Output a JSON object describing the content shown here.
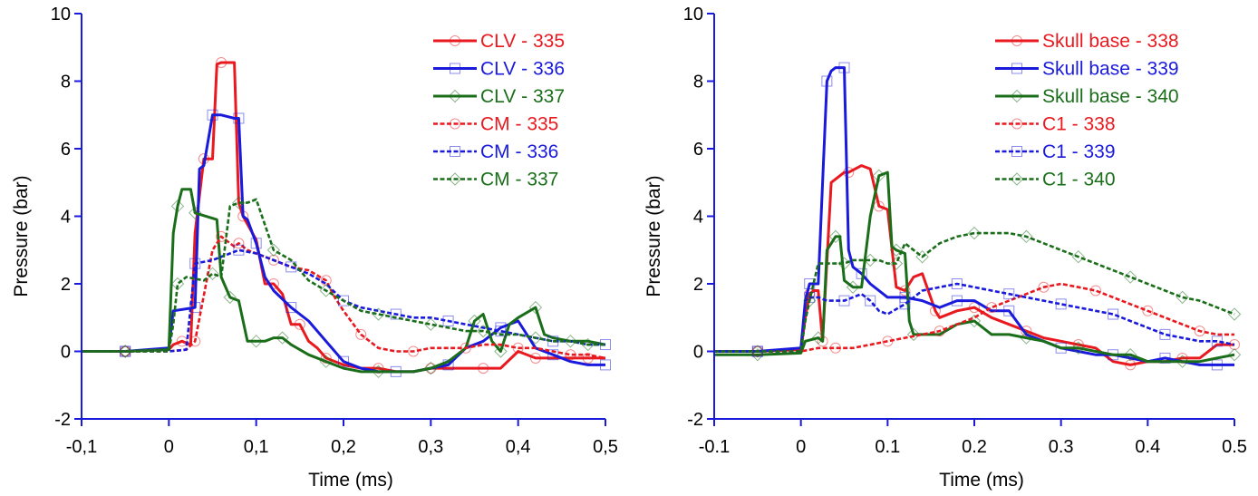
{
  "chart_data": [
    {
      "type": "line",
      "title": "",
      "xlabel": "Time (ms)",
      "ylabel": "Pressure (bar)",
      "xlim": [
        -0.1,
        0.5
      ],
      "ylim": [
        -2,
        10
      ],
      "xticks": [
        -0.1,
        0,
        0.1,
        0.2,
        0.3,
        0.4,
        0.5
      ],
      "xtick_labels": [
        "-0,1",
        "0",
        "0,1",
        "0,2",
        "0,3",
        "0,4",
        "0,5"
      ],
      "yticks": [
        -2,
        0,
        2,
        4,
        6,
        8,
        10
      ],
      "ytick_labels": [
        "-2",
        "0",
        "2",
        "4",
        "6",
        "8",
        "10"
      ],
      "grid": false,
      "legend_position": "top-right",
      "series": [
        {
          "name": "CLV - 335",
          "color": "#e8191f",
          "dash": "solid",
          "marker": "circle",
          "x": [
            -0.1,
            -0.05,
            0,
            0.005,
            0.015,
            0.025,
            0.03,
            0.04,
            0.05,
            0.055,
            0.06,
            0.075,
            0.08,
            0.085,
            0.1,
            0.11,
            0.12,
            0.13,
            0.14,
            0.15,
            0.16,
            0.17,
            0.18,
            0.2,
            0.22,
            0.24,
            0.26,
            0.28,
            0.3,
            0.32,
            0.34,
            0.36,
            0.38,
            0.4,
            0.42,
            0.44,
            0.46,
            0.48,
            0.5
          ],
          "y": [
            0,
            0,
            0.05,
            0.2,
            0.3,
            0.2,
            3.5,
            5.7,
            5.7,
            8.5,
            8.55,
            8.55,
            4.4,
            4,
            3.3,
            2,
            2,
            1.7,
            0.8,
            0.8,
            0.3,
            0.1,
            -0.2,
            -0.4,
            -0.5,
            -0.5,
            -0.6,
            -0.6,
            -0.5,
            -0.5,
            -0.5,
            -0.5,
            -0.5,
            0,
            -0.2,
            -0.2,
            -0.2,
            -0.2,
            -0.2
          ]
        },
        {
          "name": "CLV - 336",
          "color": "#1a1adc",
          "dash": "solid",
          "marker": "square",
          "x": [
            -0.1,
            -0.05,
            0,
            0.005,
            0.03,
            0.035,
            0.04,
            0.05,
            0.06,
            0.075,
            0.08,
            0.085,
            0.09,
            0.1,
            0.11,
            0.12,
            0.14,
            0.16,
            0.18,
            0.2,
            0.22,
            0.24,
            0.26,
            0.28,
            0.3,
            0.32,
            0.34,
            0.36,
            0.38,
            0.4,
            0.42,
            0.44,
            0.46,
            0.48,
            0.5
          ],
          "y": [
            0,
            0,
            0.1,
            1.2,
            1.3,
            5.4,
            5.5,
            7,
            7,
            6.9,
            6.9,
            4,
            3.9,
            3.2,
            2.2,
            1.8,
            1.3,
            0.9,
            0.3,
            -0.3,
            -0.5,
            -0.6,
            -0.6,
            -0.6,
            -0.5,
            -0.4,
            0.1,
            0.3,
            0.7,
            0.9,
            0.1,
            -0.1,
            -0.3,
            -0.4,
            -0.4
          ]
        },
        {
          "name": "CLV - 337",
          "color": "#1a6e1a",
          "dash": "solid",
          "marker": "diamond",
          "x": [
            -0.1,
            -0.05,
            0,
            0.005,
            0.01,
            0.015,
            0.025,
            0.03,
            0.055,
            0.06,
            0.07,
            0.08,
            0.09,
            0.1,
            0.11,
            0.12,
            0.13,
            0.14,
            0.16,
            0.18,
            0.2,
            0.22,
            0.24,
            0.26,
            0.28,
            0.3,
            0.32,
            0.34,
            0.35,
            0.36,
            0.37,
            0.38,
            0.39,
            0.4,
            0.42,
            0.43,
            0.44,
            0.46,
            0.48,
            0.5
          ],
          "y": [
            0,
            0,
            0.05,
            3.5,
            4.3,
            4.8,
            4.8,
            4.1,
            3.9,
            2.2,
            1.6,
            1.5,
            0.3,
            0.3,
            0.3,
            0.4,
            0.4,
            0.2,
            -0.1,
            -0.3,
            -0.5,
            -0.6,
            -0.6,
            -0.6,
            -0.6,
            -0.5,
            -0.3,
            0.1,
            0.9,
            1.1,
            0.3,
            0,
            0.8,
            1,
            1.3,
            0.5,
            0.4,
            0.3,
            0.3,
            0.2
          ]
        },
        {
          "name": "CM - 335",
          "color": "#e8191f",
          "dash": "dashed",
          "marker": "circle",
          "x": [
            -0.1,
            -0.05,
            0,
            0.02,
            0.03,
            0.05,
            0.055,
            0.06,
            0.065,
            0.075,
            0.08,
            0.09,
            0.1,
            0.12,
            0.14,
            0.16,
            0.18,
            0.19,
            0.2,
            0.22,
            0.24,
            0.26,
            0.28,
            0.3,
            0.32,
            0.34,
            0.36,
            0.38,
            0.4,
            0.42,
            0.44,
            0.46,
            0.48,
            0.5
          ],
          "y": [
            0,
            0,
            0,
            0.05,
            0.3,
            3,
            3.2,
            3.4,
            3.3,
            3.1,
            3.2,
            3,
            2.9,
            2.7,
            2.5,
            2.4,
            2.1,
            1.6,
            1.2,
            0.5,
            0.1,
            0,
            0,
            0.1,
            0.1,
            0.1,
            0.2,
            0.2,
            0.1,
            0.1,
            0,
            -0.1,
            -0.1,
            -0.2
          ]
        },
        {
          "name": "CM - 336",
          "color": "#1a1adc",
          "dash": "dashed",
          "marker": "square",
          "x": [
            -0.1,
            -0.05,
            0,
            0.02,
            0.03,
            0.05,
            0.07,
            0.08,
            0.1,
            0.12,
            0.14,
            0.16,
            0.18,
            0.2,
            0.22,
            0.24,
            0.26,
            0.28,
            0.3,
            0.32,
            0.34,
            0.36,
            0.38,
            0.4,
            0.42,
            0.44,
            0.46,
            0.48,
            0.5
          ],
          "y": [
            0,
            0,
            0,
            0.05,
            2.6,
            2.7,
            2.9,
            3,
            2.9,
            2.7,
            2.5,
            2.3,
            2,
            1.5,
            1.3,
            1.2,
            1.1,
            1,
            1,
            0.9,
            0.8,
            0.7,
            0.6,
            0.5,
            0.4,
            0.3,
            0.3,
            0.2,
            0.2
          ]
        },
        {
          "name": "CM - 337",
          "color": "#1a6e1a",
          "dash": "dashed",
          "marker": "diamond",
          "x": [
            -0.1,
            -0.05,
            0,
            0.005,
            0.01,
            0.02,
            0.04,
            0.05,
            0.06,
            0.07,
            0.08,
            0.09,
            0.1,
            0.12,
            0.14,
            0.16,
            0.18,
            0.2,
            0.22,
            0.24,
            0.26,
            0.28,
            0.3,
            0.32,
            0.34,
            0.36,
            0.38,
            0.4,
            0.42,
            0.44,
            0.46,
            0.48,
            0.5
          ],
          "y": [
            0,
            0,
            0,
            0.8,
            2,
            2.2,
            2.1,
            2.3,
            2.2,
            4.3,
            4.4,
            4.4,
            4.5,
            3,
            2.7,
            2.1,
            1.8,
            1.5,
            1.2,
            1.1,
            1,
            0.9,
            0.8,
            0.7,
            0.6,
            0.6,
            0.5,
            0.5,
            0.4,
            0.3,
            0.3,
            0.2,
            0.2
          ]
        }
      ]
    },
    {
      "type": "line",
      "title": "",
      "xlabel": "Time (ms)",
      "ylabel": "Pressure (bar)",
      "xlim": [
        -0.1,
        0.5
      ],
      "ylim": [
        -2,
        10
      ],
      "xticks": [
        -0.1,
        0,
        0.1,
        0.2,
        0.3,
        0.4,
        0.5
      ],
      "xtick_labels": [
        "-0.1",
        "0",
        "0.1",
        "0.2",
        "0.3",
        "0.4",
        "0.5"
      ],
      "yticks": [
        -2,
        0,
        2,
        4,
        6,
        8,
        10
      ],
      "ytick_labels": [
        "-2",
        "0",
        "2",
        "4",
        "6",
        "8",
        "10"
      ],
      "grid": false,
      "legend_position": "top-right",
      "series": [
        {
          "name": "Skull base - 338",
          "color": "#e8191f",
          "dash": "solid",
          "marker": "circle",
          "x": [
            -0.1,
            -0.05,
            0,
            0.005,
            0.01,
            0.015,
            0.02,
            0.025,
            0.035,
            0.05,
            0.055,
            0.07,
            0.08,
            0.09,
            0.1,
            0.11,
            0.12,
            0.13,
            0.14,
            0.155,
            0.16,
            0.18,
            0.2,
            0.22,
            0.24,
            0.26,
            0.28,
            0.3,
            0.32,
            0.34,
            0.36,
            0.38,
            0.4,
            0.42,
            0.44,
            0.46,
            0.48,
            0.5
          ],
          "y": [
            0,
            0,
            0.05,
            1,
            1.7,
            1.8,
            1.8,
            0.3,
            5,
            5.3,
            5.3,
            5.5,
            5.4,
            4.3,
            4.2,
            1.9,
            1.8,
            2.2,
            2.3,
            1.2,
            1,
            1.2,
            1.3,
            1,
            0.8,
            0.6,
            0.4,
            0.3,
            0.2,
            0.1,
            -0.3,
            -0.4,
            -0.3,
            -0.3,
            -0.2,
            -0.2,
            0.2,
            0.2
          ]
        },
        {
          "name": "Skull base - 339",
          "color": "#1a1adc",
          "dash": "solid",
          "marker": "square",
          "x": [
            -0.1,
            -0.05,
            0,
            0.005,
            0.01,
            0.02,
            0.025,
            0.03,
            0.035,
            0.04,
            0.05,
            0.055,
            0.06,
            0.07,
            0.08,
            0.1,
            0.12,
            0.14,
            0.16,
            0.18,
            0.2,
            0.22,
            0.24,
            0.26,
            0.28,
            0.3,
            0.32,
            0.34,
            0.36,
            0.38,
            0.4,
            0.42,
            0.44,
            0.46,
            0.48,
            0.5
          ],
          "y": [
            0,
            0,
            0.1,
            1.5,
            2,
            2,
            5,
            8,
            8.3,
            8.4,
            8.4,
            3,
            2.5,
            2.3,
            2,
            1.6,
            1.6,
            1.5,
            1.3,
            1.5,
            1.5,
            1.2,
            1.2,
            0.5,
            0.3,
            0.1,
            0,
            -0.1,
            -0.1,
            -0.2,
            -0.3,
            -0.2,
            -0.3,
            -0.4,
            -0.4,
            -0.4
          ]
        },
        {
          "name": "Skull base - 340",
          "color": "#1a6e1a",
          "dash": "solid",
          "marker": "diamond",
          "x": [
            -0.1,
            -0.05,
            0,
            0.005,
            0.02,
            0.025,
            0.03,
            0.04,
            0.045,
            0.05,
            0.06,
            0.07,
            0.08,
            0.09,
            0.1,
            0.105,
            0.11,
            0.12,
            0.125,
            0.13,
            0.16,
            0.18,
            0.2,
            0.22,
            0.24,
            0.26,
            0.28,
            0.3,
            0.32,
            0.34,
            0.36,
            0.38,
            0.4,
            0.42,
            0.44,
            0.46,
            0.48,
            0.5
          ],
          "y": [
            -0.1,
            -0.1,
            -0.05,
            0.3,
            0.4,
            0.3,
            3,
            3.4,
            3.4,
            2.1,
            1.9,
            1.9,
            4,
            5.2,
            5.3,
            3.1,
            3,
            2.9,
            0.9,
            0.5,
            0.5,
            0.8,
            0.9,
            0.5,
            0.5,
            0.4,
            0.3,
            0.1,
            0.1,
            0,
            -0.1,
            -0.1,
            -0.3,
            -0.3,
            -0.3,
            -0.3,
            -0.2,
            -0.1
          ]
        },
        {
          "name": "C1 - 338",
          "color": "#e8191f",
          "dash": "dashed",
          "marker": "circle",
          "x": [
            -0.1,
            -0.05,
            0,
            0.02,
            0.04,
            0.06,
            0.08,
            0.1,
            0.12,
            0.14,
            0.16,
            0.18,
            0.2,
            0.22,
            0.24,
            0.26,
            0.28,
            0.3,
            0.32,
            0.34,
            0.36,
            0.38,
            0.4,
            0.42,
            0.44,
            0.46,
            0.48,
            0.5
          ],
          "y": [
            0,
            0,
            0,
            0.1,
            0.1,
            0.1,
            0.2,
            0.3,
            0.4,
            0.5,
            0.6,
            0.8,
            1,
            1.3,
            1.5,
            1.7,
            1.9,
            2,
            1.9,
            1.8,
            1.6,
            1.4,
            1.2,
            1,
            0.8,
            0.6,
            0.5,
            0.5
          ]
        },
        {
          "name": "C1 - 339",
          "color": "#1a1adc",
          "dash": "dashed",
          "marker": "square",
          "x": [
            -0.1,
            -0.05,
            0,
            0.005,
            0.01,
            0.02,
            0.03,
            0.05,
            0.06,
            0.07,
            0.08,
            0.09,
            0.1,
            0.12,
            0.14,
            0.16,
            0.18,
            0.2,
            0.22,
            0.24,
            0.26,
            0.28,
            0.3,
            0.32,
            0.34,
            0.36,
            0.38,
            0.4,
            0.42,
            0.44,
            0.46,
            0.48,
            0.5
          ],
          "y": [
            0,
            0,
            0,
            1.5,
            1.6,
            1.6,
            1.5,
            1.5,
            1.6,
            1.7,
            1.5,
            1.2,
            1.1,
            1.4,
            1.8,
            1.9,
            2,
            1.9,
            1.8,
            1.7,
            1.6,
            1.5,
            1.4,
            1.3,
            1.2,
            1.1,
            0.9,
            0.7,
            0.5,
            0.4,
            0.3,
            0.3,
            0.2
          ]
        },
        {
          "name": "C1 - 340",
          "color": "#1a6e1a",
          "dash": "dashed",
          "marker": "diamond",
          "x": [
            -0.1,
            -0.05,
            0,
            0.005,
            0.01,
            0.02,
            0.03,
            0.05,
            0.06,
            0.07,
            0.08,
            0.09,
            0.1,
            0.11,
            0.12,
            0.13,
            0.14,
            0.16,
            0.18,
            0.2,
            0.22,
            0.24,
            0.26,
            0.28,
            0.3,
            0.32,
            0.34,
            0.36,
            0.38,
            0.4,
            0.42,
            0.44,
            0.46,
            0.48,
            0.5
          ],
          "y": [
            0,
            0,
            0,
            0.9,
            1.5,
            2.6,
            2.6,
            2.6,
            2.7,
            2.7,
            2.7,
            2.7,
            2.6,
            2.6,
            3.2,
            3,
            2.8,
            3.2,
            3.4,
            3.5,
            3.5,
            3.5,
            3.4,
            3.2,
            3,
            2.8,
            2.6,
            2.4,
            2.2,
            2,
            1.8,
            1.6,
            1.5,
            1.3,
            1.1
          ]
        }
      ]
    }
  ]
}
